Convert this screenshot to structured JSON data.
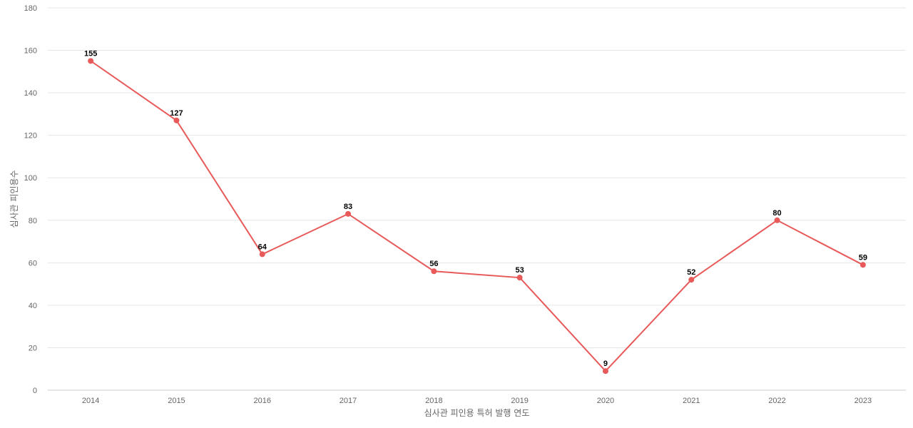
{
  "chart_data": {
    "type": "line",
    "title": "",
    "xlabel": "심사관 피인용 특허 발행 연도",
    "ylabel": "심사관 피인용수",
    "categories": [
      "2014",
      "2015",
      "2016",
      "2017",
      "2018",
      "2019",
      "2020",
      "2021",
      "2022",
      "2023"
    ],
    "series": [
      {
        "values": [
          155,
          127,
          64,
          83,
          56,
          53,
          9,
          52,
          80,
          59
        ],
        "color": "#e85a5a"
      }
    ],
    "ylim": [
      0,
      180
    ],
    "yticks": [
      0,
      20,
      40,
      60,
      80,
      100,
      120,
      140,
      160,
      180
    ],
    "grid": true,
    "legend": "none",
    "data_labels": true
  }
}
